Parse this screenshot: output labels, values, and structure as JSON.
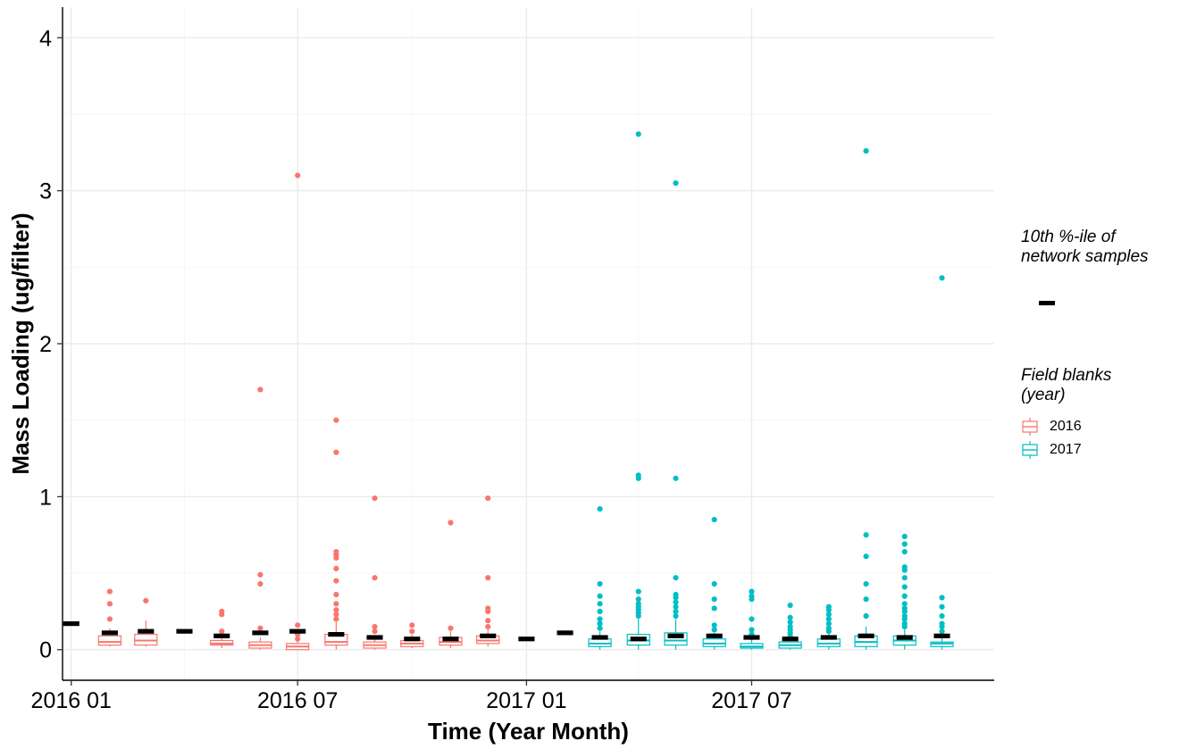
{
  "chart_data": {
    "type": "box",
    "title": "",
    "xlabel": "Time (Year Month)",
    "ylabel": "Mass Loading (ug/filter)",
    "x_axis": {
      "type": "date",
      "range": [
        "2015-12-25",
        "2018-01-12"
      ],
      "ticks": [
        "2016-01-01",
        "2016-07-01",
        "2017-01-01",
        "2017-07-01"
      ],
      "tick_labels": [
        "2016 01",
        "2016 07",
        "2017 01",
        "2017 07"
      ]
    },
    "y_axis": {
      "range": [
        -0.2,
        4.2
      ],
      "ticks": [
        0,
        1,
        2,
        3,
        4
      ]
    },
    "grid": true,
    "legend": {
      "placement": "right",
      "network_title": "10th %-ile of\nnetwork samples",
      "blank_title": "Field blanks\n(year)",
      "series": [
        {
          "name": "2016",
          "color": "#F8766D"
        },
        {
          "name": "2017",
          "color": "#00BFC4"
        }
      ]
    },
    "network_10th_percentile": [
      {
        "date": "2016-01-01",
        "value": 0.17
      },
      {
        "date": "2016-02-01",
        "value": 0.11
      },
      {
        "date": "2016-03-01",
        "value": 0.12
      },
      {
        "date": "2016-04-01",
        "value": 0.12
      },
      {
        "date": "2016-05-01",
        "value": 0.09
      },
      {
        "date": "2016-06-01",
        "value": 0.11
      },
      {
        "date": "2016-07-01",
        "value": 0.12
      },
      {
        "date": "2016-08-01",
        "value": 0.1
      },
      {
        "date": "2016-09-01",
        "value": 0.08
      },
      {
        "date": "2016-10-01",
        "value": 0.07
      },
      {
        "date": "2016-11-01",
        "value": 0.07
      },
      {
        "date": "2016-12-01",
        "value": 0.09
      },
      {
        "date": "2017-01-01",
        "value": 0.07
      },
      {
        "date": "2017-02-01",
        "value": 0.11
      },
      {
        "date": "2017-03-01",
        "value": 0.08
      },
      {
        "date": "2017-04-01",
        "value": 0.07
      },
      {
        "date": "2017-05-01",
        "value": 0.09
      },
      {
        "date": "2017-06-01",
        "value": 0.09
      },
      {
        "date": "2017-07-01",
        "value": 0.08
      },
      {
        "date": "2017-08-01",
        "value": 0.07
      },
      {
        "date": "2017-09-01",
        "value": 0.08
      },
      {
        "date": "2017-10-01",
        "value": 0.09
      },
      {
        "date": "2017-11-01",
        "value": 0.08
      },
      {
        "date": "2017-12-01",
        "value": 0.09
      }
    ],
    "series": [
      {
        "name": "2016",
        "boxes": [
          {
            "date": "2016-02-01",
            "lower_whisker": 0.02,
            "q1": 0.03,
            "median": 0.05,
            "q3": 0.09,
            "upper_whisker": 0.14,
            "outliers": [
              0.2,
              0.3,
              0.38
            ]
          },
          {
            "date": "2016-03-01",
            "lower_whisker": 0.02,
            "q1": 0.03,
            "median": 0.06,
            "q3": 0.1,
            "upper_whisker": 0.19,
            "outliers": [
              0.32
            ]
          },
          {
            "date": "2016-05-01",
            "lower_whisker": 0.01,
            "q1": 0.03,
            "median": 0.04,
            "q3": 0.06,
            "upper_whisker": 0.09,
            "outliers": [
              0.12,
              0.23,
              0.25
            ]
          },
          {
            "date": "2016-06-01",
            "lower_whisker": 0.0,
            "q1": 0.01,
            "median": 0.03,
            "q3": 0.05,
            "upper_whisker": 0.08,
            "outliers": [
              0.14,
              0.43,
              0.49,
              1.7
            ]
          },
          {
            "date": "2016-07-01",
            "lower_whisker": 0.0,
            "q1": 0.0,
            "median": 0.02,
            "q3": 0.04,
            "upper_whisker": 0.06,
            "outliers": [
              0.07,
              0.1,
              0.16,
              3.1
            ]
          },
          {
            "date": "2016-08-01",
            "lower_whisker": 0.0,
            "q1": 0.03,
            "median": 0.05,
            "q3": 0.1,
            "upper_whisker": 0.18,
            "outliers": [
              0.2,
              0.23,
              0.26,
              0.3,
              0.36,
              0.45,
              0.53,
              0.6,
              0.62,
              0.64,
              1.29,
              1.5
            ]
          },
          {
            "date": "2016-09-01",
            "lower_whisker": 0.0,
            "q1": 0.01,
            "median": 0.03,
            "q3": 0.05,
            "upper_whisker": 0.09,
            "outliers": [
              0.12,
              0.15,
              0.47,
              0.99
            ]
          },
          {
            "date": "2016-10-01",
            "lower_whisker": 0.01,
            "q1": 0.02,
            "median": 0.04,
            "q3": 0.06,
            "upper_whisker": 0.1,
            "outliers": [
              0.12,
              0.16
            ]
          },
          {
            "date": "2016-11-01",
            "lower_whisker": 0.01,
            "q1": 0.03,
            "median": 0.05,
            "q3": 0.08,
            "upper_whisker": 0.12,
            "outliers": [
              0.14,
              0.83
            ]
          },
          {
            "date": "2016-12-01",
            "lower_whisker": 0.02,
            "q1": 0.04,
            "median": 0.06,
            "q3": 0.09,
            "upper_whisker": 0.13,
            "outliers": [
              0.15,
              0.19,
              0.25,
              0.27,
              0.47,
              0.99
            ]
          }
        ]
      },
      {
        "name": "2017",
        "boxes": [
          {
            "date": "2017-03-01",
            "lower_whisker": 0.0,
            "q1": 0.02,
            "median": 0.04,
            "q3": 0.07,
            "upper_whisker": 0.12,
            "outliers": [
              0.14,
              0.17,
              0.2,
              0.25,
              0.3,
              0.35,
              0.43,
              0.92
            ]
          },
          {
            "date": "2017-04-01",
            "lower_whisker": 0.0,
            "q1": 0.03,
            "median": 0.06,
            "q3": 0.1,
            "upper_whisker": 0.2,
            "outliers": [
              0.22,
              0.24,
              0.26,
              0.28,
              0.3,
              0.33,
              0.38,
              1.12,
              1.14,
              3.37
            ]
          },
          {
            "date": "2017-05-01",
            "lower_whisker": 0.0,
            "q1": 0.03,
            "median": 0.06,
            "q3": 0.11,
            "upper_whisker": 0.2,
            "outliers": [
              0.22,
              0.25,
              0.28,
              0.31,
              0.34,
              0.36,
              0.47,
              1.12,
              3.05
            ]
          },
          {
            "date": "2017-06-01",
            "lower_whisker": 0.0,
            "q1": 0.02,
            "median": 0.04,
            "q3": 0.07,
            "upper_whisker": 0.11,
            "outliers": [
              0.13,
              0.16,
              0.27,
              0.33,
              0.43,
              0.85
            ]
          },
          {
            "date": "2017-07-01",
            "lower_whisker": 0.0,
            "q1": 0.01,
            "median": 0.02,
            "q3": 0.04,
            "upper_whisker": 0.07,
            "outliers": [
              0.08,
              0.1,
              0.13,
              0.2,
              0.33,
              0.35,
              0.38
            ]
          },
          {
            "date": "2017-08-01",
            "lower_whisker": 0.0,
            "q1": 0.01,
            "median": 0.03,
            "q3": 0.05,
            "upper_whisker": 0.08,
            "outliers": [
              0.09,
              0.11,
              0.13,
              0.15,
              0.18,
              0.21,
              0.29
            ]
          },
          {
            "date": "2017-09-01",
            "lower_whisker": 0.0,
            "q1": 0.02,
            "median": 0.04,
            "q3": 0.07,
            "upper_whisker": 0.11,
            "outliers": [
              0.12,
              0.14,
              0.17,
              0.2,
              0.23,
              0.26,
              0.28
            ]
          },
          {
            "date": "2017-10-01",
            "lower_whisker": 0.0,
            "q1": 0.02,
            "median": 0.05,
            "q3": 0.09,
            "upper_whisker": 0.15,
            "outliers": [
              0.22,
              0.33,
              0.43,
              0.61,
              0.75,
              3.26
            ]
          },
          {
            "date": "2017-11-01",
            "lower_whisker": 0.0,
            "q1": 0.03,
            "median": 0.06,
            "q3": 0.09,
            "upper_whisker": 0.13,
            "outliers": [
              0.15,
              0.17,
              0.2,
              0.22,
              0.25,
              0.27,
              0.3,
              0.35,
              0.41,
              0.47,
              0.52,
              0.54,
              0.64,
              0.69,
              0.74
            ]
          },
          {
            "date": "2017-12-01",
            "lower_whisker": 0.0,
            "q1": 0.02,
            "median": 0.04,
            "q3": 0.05,
            "upper_whisker": 0.1,
            "outliers": [
              0.12,
              0.15,
              0.17,
              0.22,
              0.28,
              0.34,
              2.43
            ]
          }
        ]
      }
    ]
  }
}
